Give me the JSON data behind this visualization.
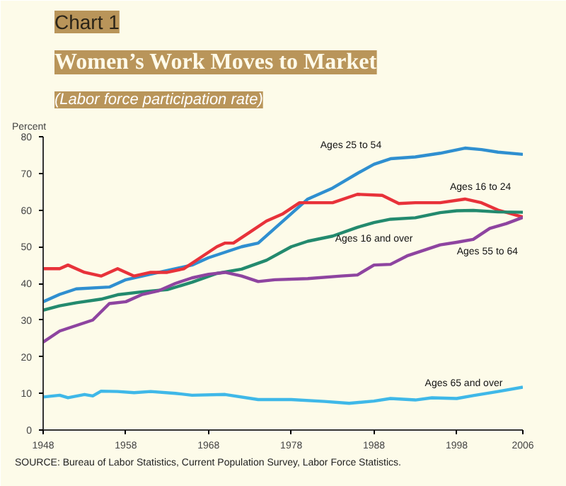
{
  "chart_data": {
    "type": "line",
    "title": "Women’s Work Moves to Market",
    "subtitle": "(Labor force participation rate)",
    "ylabel": "Percent",
    "xlim": [
      1948,
      2006
    ],
    "xticks": [
      1948,
      1958,
      1968,
      1978,
      1988,
      1998,
      2006
    ],
    "ylim": [
      0,
      80
    ],
    "yticks": [
      0,
      10,
      20,
      30,
      40,
      50,
      60,
      70,
      80
    ],
    "grid": false,
    "line_style": "solid",
    "marker": "none",
    "series": [
      {
        "color": "#2f8fd0",
        "x": [
          1948,
          1950,
          1952,
          1956,
          1958,
          1962,
          1966,
          1968,
          1972,
          1974,
          1976,
          1978,
          1980,
          1983,
          1986,
          1988,
          1990,
          1993,
          1996,
          1999,
          2001,
          2003,
          2006
        ],
        "values": [
          35,
          37,
          38.5,
          39,
          41,
          43,
          45,
          47,
          50,
          51,
          55,
          59,
          63,
          66,
          70,
          72.5,
          74,
          74.5,
          75.5,
          76.9,
          76.5,
          75.8,
          75.2
        ]
      },
      {
        "color": "#e8323a",
        "x": [
          1948,
          1950,
          1951,
          1953,
          1955,
          1957,
          1959,
          1961,
          1963,
          1965,
          1967,
          1969,
          1970,
          1971,
          1973,
          1975,
          1977,
          1979,
          1980,
          1983,
          1986,
          1989,
          1991,
          1993,
          1996,
          1999,
          2001,
          2003,
          2006
        ],
        "values": [
          44,
          44,
          45,
          43,
          42,
          44,
          42,
          43,
          43,
          44,
          47,
          50,
          51,
          51,
          54,
          57,
          59,
          62,
          62,
          62,
          64.3,
          64,
          61.8,
          62,
          62,
          63,
          62,
          60,
          58.1
        ]
      },
      {
        "color": "#238a6e",
        "x": [
          1948,
          1950,
          1952,
          1955,
          1957,
          1960,
          1963,
          1966,
          1969,
          1972,
          1975,
          1978,
          1980,
          1983,
          1986,
          1988,
          1990,
          1993,
          1996,
          1998,
          2000,
          2003,
          2006
        ],
        "values": [
          32.7,
          33.9,
          34.7,
          35.7,
          36.9,
          37.7,
          38.3,
          40.3,
          42.7,
          43.9,
          46.3,
          50,
          51.5,
          52.9,
          55.3,
          56.6,
          57.5,
          57.9,
          59.3,
          59.8,
          59.9,
          59.5,
          59.4
        ]
      },
      {
        "color": "#8e44a0",
        "x": [
          1948,
          1950,
          1952,
          1954,
          1956,
          1958,
          1960,
          1962,
          1964,
          1966,
          1968,
          1970,
          1972,
          1974,
          1976,
          1980,
          1984,
          1986,
          1988,
          1990,
          1992,
          1994,
          1996,
          1998,
          2000,
          2002,
          2004,
          2006
        ],
        "values": [
          24,
          27,
          28.5,
          30,
          34.5,
          35,
          37,
          38,
          40,
          41.5,
          42.5,
          43,
          42,
          40.5,
          41,
          41.3,
          42,
          42.3,
          45,
          45.2,
          47.5,
          49,
          50.5,
          51.2,
          52,
          55,
          56.3,
          58
        ]
      },
      {
        "color": "#3fb8e8",
        "x": [
          1948,
          1950,
          1951,
          1953,
          1954,
          1955,
          1957,
          1959,
          1961,
          1964,
          1966,
          1970,
          1974,
          1978,
          1982,
          1985,
          1988,
          1990,
          1993,
          1995,
          1998,
          2000,
          2003,
          2006
        ],
        "values": [
          9,
          9.5,
          8.8,
          9.7,
          9.3,
          10.6,
          10.5,
          10.2,
          10.5,
          10,
          9.5,
          9.7,
          8.3,
          8.3,
          7.8,
          7.3,
          7.9,
          8.6,
          8.2,
          8.8,
          8.6,
          9.4,
          10.5,
          11.7
        ]
      }
    ],
    "annotations": [
      "Chart 1",
      {
        "text": "Ages 25 to 54",
        "x": 1990,
        "y": 74
      },
      {
        "text": "Ages 16 to 24",
        "x": 1999,
        "y": 63
      },
      {
        "text": "Ages 16 and over",
        "x": 1988,
        "y": 56.6
      },
      {
        "text": "Ages 55 to 64",
        "x": 2000,
        "y": 52
      },
      {
        "text": "Ages 65 and over",
        "x": 1998,
        "y": 8.6
      },
      "SOURCE: Bureau of Labor Statistics, Current Population Survey, Labor Force Statistics."
    ]
  }
}
